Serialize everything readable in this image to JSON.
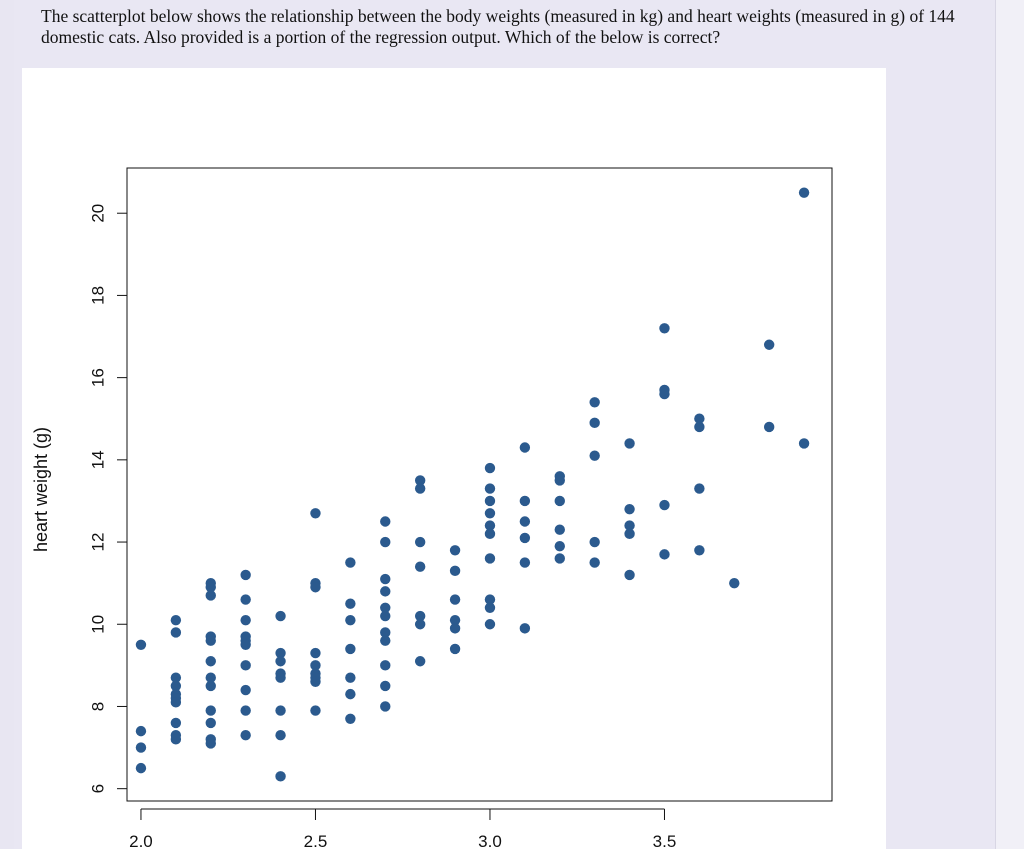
{
  "question": {
    "text": "The scatterplot below shows the relationship between the body weights (measured in kg) and heart weights (measured in g) of 144 domestic cats. Also provided is a portion of the regression output. Which of the below is correct?"
  },
  "colors": {
    "page_background": "#e8e6f2",
    "figure_background": "#ffffff",
    "point": "#2b5a8e"
  },
  "chart_data": {
    "type": "scatter",
    "title": "",
    "xlabel": "",
    "ylabel": "heart weight (g)",
    "xlim": [
      1.96,
      3.98
    ],
    "ylim": [
      5.7,
      21.1
    ],
    "xticks": [
      2.0,
      2.5,
      3.0,
      3.5
    ],
    "xtick_labels": [
      "2.0",
      "2.5",
      "3.0",
      "3.5"
    ],
    "yticks": [
      6,
      8,
      10,
      12,
      14,
      16,
      18,
      20
    ],
    "ytick_labels": [
      "6",
      "8",
      "10",
      "12",
      "14",
      "16",
      "18",
      "20"
    ],
    "grid": false,
    "legend": "none",
    "points": [
      {
        "x": 2.0,
        "y": 9.5
      },
      {
        "x": 2.0,
        "y": 7.4
      },
      {
        "x": 2.0,
        "y": 7.0
      },
      {
        "x": 2.0,
        "y": 6.5
      },
      {
        "x": 2.1,
        "y": 10.1
      },
      {
        "x": 2.1,
        "y": 9.8
      },
      {
        "x": 2.1,
        "y": 8.7
      },
      {
        "x": 2.1,
        "y": 8.5
      },
      {
        "x": 2.1,
        "y": 8.3
      },
      {
        "x": 2.1,
        "y": 8.2
      },
      {
        "x": 2.1,
        "y": 8.1
      },
      {
        "x": 2.1,
        "y": 7.6
      },
      {
        "x": 2.1,
        "y": 7.3
      },
      {
        "x": 2.1,
        "y": 7.2
      },
      {
        "x": 2.2,
        "y": 11.0
      },
      {
        "x": 2.2,
        "y": 10.9
      },
      {
        "x": 2.2,
        "y": 10.7
      },
      {
        "x": 2.2,
        "y": 9.7
      },
      {
        "x": 2.2,
        "y": 9.6
      },
      {
        "x": 2.2,
        "y": 9.1
      },
      {
        "x": 2.2,
        "y": 8.7
      },
      {
        "x": 2.2,
        "y": 8.5
      },
      {
        "x": 2.2,
        "y": 7.9
      },
      {
        "x": 2.2,
        "y": 7.6
      },
      {
        "x": 2.2,
        "y": 7.2
      },
      {
        "x": 2.2,
        "y": 7.1
      },
      {
        "x": 2.3,
        "y": 11.2
      },
      {
        "x": 2.3,
        "y": 10.6
      },
      {
        "x": 2.3,
        "y": 10.1
      },
      {
        "x": 2.3,
        "y": 9.7
      },
      {
        "x": 2.3,
        "y": 9.6
      },
      {
        "x": 2.3,
        "y": 9.5
      },
      {
        "x": 2.3,
        "y": 9.0
      },
      {
        "x": 2.3,
        "y": 8.4
      },
      {
        "x": 2.3,
        "y": 7.9
      },
      {
        "x": 2.3,
        "y": 7.3
      },
      {
        "x": 2.4,
        "y": 10.2
      },
      {
        "x": 2.4,
        "y": 9.3
      },
      {
        "x": 2.4,
        "y": 9.1
      },
      {
        "x": 2.4,
        "y": 8.8
      },
      {
        "x": 2.4,
        "y": 8.7
      },
      {
        "x": 2.4,
        "y": 7.9
      },
      {
        "x": 2.4,
        "y": 7.3
      },
      {
        "x": 2.4,
        "y": 6.3
      },
      {
        "x": 2.5,
        "y": 12.7
      },
      {
        "x": 2.5,
        "y": 11.0
      },
      {
        "x": 2.5,
        "y": 10.9
      },
      {
        "x": 2.5,
        "y": 9.3
      },
      {
        "x": 2.5,
        "y": 9.0
      },
      {
        "x": 2.5,
        "y": 8.8
      },
      {
        "x": 2.5,
        "y": 8.7
      },
      {
        "x": 2.5,
        "y": 8.6
      },
      {
        "x": 2.5,
        "y": 7.9
      },
      {
        "x": 2.6,
        "y": 11.5
      },
      {
        "x": 2.6,
        "y": 10.5
      },
      {
        "x": 2.6,
        "y": 10.1
      },
      {
        "x": 2.6,
        "y": 9.4
      },
      {
        "x": 2.6,
        "y": 8.7
      },
      {
        "x": 2.6,
        "y": 8.3
      },
      {
        "x": 2.6,
        "y": 7.7
      },
      {
        "x": 2.7,
        "y": 12.5
      },
      {
        "x": 2.7,
        "y": 12.0
      },
      {
        "x": 2.7,
        "y": 11.1
      },
      {
        "x": 2.7,
        "y": 10.8
      },
      {
        "x": 2.7,
        "y": 10.4
      },
      {
        "x": 2.7,
        "y": 10.2
      },
      {
        "x": 2.7,
        "y": 9.8
      },
      {
        "x": 2.7,
        "y": 9.6
      },
      {
        "x": 2.7,
        "y": 9.0
      },
      {
        "x": 2.7,
        "y": 8.5
      },
      {
        "x": 2.7,
        "y": 8.0
      },
      {
        "x": 2.8,
        "y": 13.5
      },
      {
        "x": 2.8,
        "y": 13.3
      },
      {
        "x": 2.8,
        "y": 12.0
      },
      {
        "x": 2.8,
        "y": 11.4
      },
      {
        "x": 2.8,
        "y": 10.2
      },
      {
        "x": 2.8,
        "y": 10.0
      },
      {
        "x": 2.8,
        "y": 9.1
      },
      {
        "x": 2.9,
        "y": 11.8
      },
      {
        "x": 2.9,
        "y": 11.3
      },
      {
        "x": 2.9,
        "y": 10.6
      },
      {
        "x": 2.9,
        "y": 10.1
      },
      {
        "x": 2.9,
        "y": 9.9
      },
      {
        "x": 2.9,
        "y": 9.4
      },
      {
        "x": 3.0,
        "y": 13.8
      },
      {
        "x": 3.0,
        "y": 13.3
      },
      {
        "x": 3.0,
        "y": 13.0
      },
      {
        "x": 3.0,
        "y": 12.7
      },
      {
        "x": 3.0,
        "y": 12.4
      },
      {
        "x": 3.0,
        "y": 12.2
      },
      {
        "x": 3.0,
        "y": 11.6
      },
      {
        "x": 3.0,
        "y": 10.6
      },
      {
        "x": 3.0,
        "y": 10.4
      },
      {
        "x": 3.0,
        "y": 10.0
      },
      {
        "x": 3.1,
        "y": 14.3
      },
      {
        "x": 3.1,
        "y": 13.0
      },
      {
        "x": 3.1,
        "y": 12.5
      },
      {
        "x": 3.1,
        "y": 12.1
      },
      {
        "x": 3.1,
        "y": 11.5
      },
      {
        "x": 3.1,
        "y": 9.9
      },
      {
        "x": 3.2,
        "y": 13.6
      },
      {
        "x": 3.2,
        "y": 13.5
      },
      {
        "x": 3.2,
        "y": 13.0
      },
      {
        "x": 3.2,
        "y": 12.3
      },
      {
        "x": 3.2,
        "y": 11.9
      },
      {
        "x": 3.2,
        "y": 11.6
      },
      {
        "x": 3.3,
        "y": 15.4
      },
      {
        "x": 3.3,
        "y": 14.9
      },
      {
        "x": 3.3,
        "y": 14.1
      },
      {
        "x": 3.3,
        "y": 12.0
      },
      {
        "x": 3.3,
        "y": 11.5
      },
      {
        "x": 3.4,
        "y": 14.4
      },
      {
        "x": 3.4,
        "y": 12.8
      },
      {
        "x": 3.4,
        "y": 12.4
      },
      {
        "x": 3.4,
        "y": 12.2
      },
      {
        "x": 3.4,
        "y": 11.2
      },
      {
        "x": 3.5,
        "y": 17.2
      },
      {
        "x": 3.5,
        "y": 15.7
      },
      {
        "x": 3.5,
        "y": 15.6
      },
      {
        "x": 3.5,
        "y": 12.9
      },
      {
        "x": 3.5,
        "y": 11.7
      },
      {
        "x": 3.6,
        "y": 15.0
      },
      {
        "x": 3.6,
        "y": 14.8
      },
      {
        "x": 3.6,
        "y": 13.3
      },
      {
        "x": 3.6,
        "y": 11.8
      },
      {
        "x": 3.7,
        "y": 11.0
      },
      {
        "x": 3.8,
        "y": 16.8
      },
      {
        "x": 3.8,
        "y": 14.8
      },
      {
        "x": 3.9,
        "y": 20.5
      },
      {
        "x": 3.9,
        "y": 14.4
      }
    ]
  }
}
